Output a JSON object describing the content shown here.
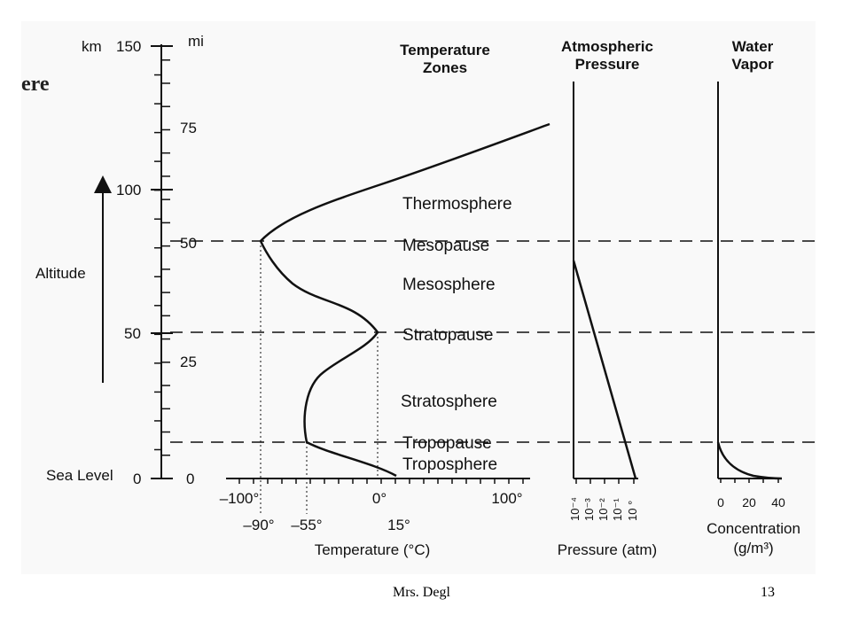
{
  "slide": {
    "title_fragment": "ere"
  },
  "footer": {
    "author": "Mrs. Degl",
    "page": "13"
  },
  "colors": {
    "panel": "#f9f9f9",
    "ink": "#111111"
  },
  "axis": {
    "km_label": "km",
    "mi_label": "mi",
    "altitude_label": "Altitude",
    "sea_level_label": "Sea Level",
    "km_ticks": [
      "150",
      "100",
      "50",
      "0"
    ],
    "mi_ticks": [
      "75",
      "50",
      "25",
      "0"
    ]
  },
  "headers": {
    "temperature": [
      "Temperature",
      "Zones"
    ],
    "pressure": [
      "Atmospheric",
      "Pressure"
    ],
    "water": [
      "Water",
      "Vapor"
    ]
  },
  "zones": {
    "thermosphere": "Thermosphere",
    "mesopause": "Mesopause",
    "mesosphere": "Mesosphere",
    "stratopause": "Stratopause",
    "stratosphere": "Stratosphere",
    "tropopause": "Tropopause",
    "troposphere": "Troposphere"
  },
  "temperature_axis": {
    "upper_ticks": [
      "–100°",
      "0°",
      "100°"
    ],
    "lower_ticks": [
      "–90°",
      "–55°",
      "15°"
    ],
    "label": "Temperature (°C)"
  },
  "pressure_axis": {
    "ticks": [
      "10⁻⁴",
      "10⁻³",
      "10⁻²",
      "10⁻¹",
      "10 °"
    ],
    "label": "Pressure (atm)"
  },
  "water_axis": {
    "ticks": [
      "0",
      "20",
      "40"
    ],
    "label_line1": "Concentration",
    "label_line2": "(g/m³)"
  }
}
